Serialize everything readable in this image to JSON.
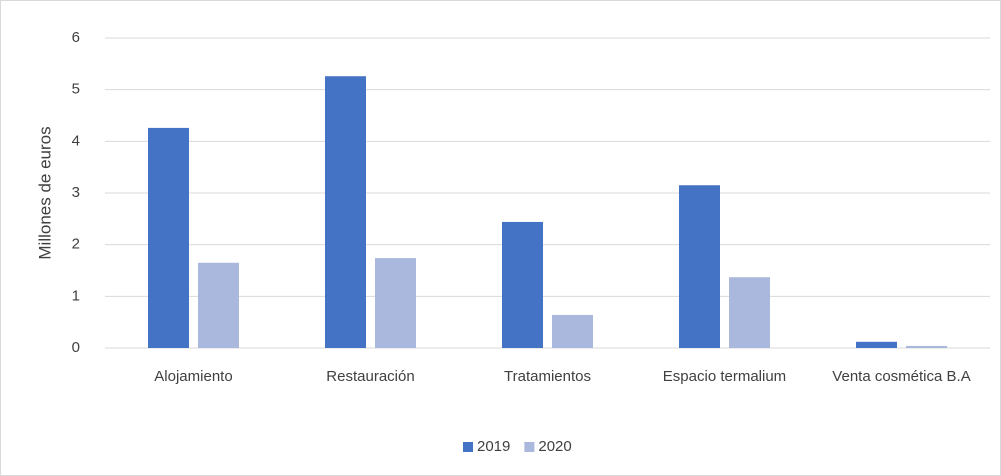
{
  "chart_data": {
    "type": "bar",
    "y_label": "Millones de euros",
    "categories": [
      "Alojamiento",
      "Restauración",
      "Tratamientos",
      "Espacio termalium",
      "Venta cosmética B.A"
    ],
    "series": [
      {
        "name": "2019",
        "color": "#4472c4",
        "values": [
          4.26,
          5.26,
          2.44,
          3.15,
          0.12
        ]
      },
      {
        "name": "2020",
        "color": "#a9b8dc",
        "values": [
          1.65,
          1.74,
          0.64,
          1.37,
          0.04
        ]
      }
    ],
    "ylim": [
      0,
      6
    ],
    "yticks": [
      0,
      1,
      2,
      3,
      4,
      5,
      6
    ],
    "grid": true,
    "legend": "bottom"
  }
}
